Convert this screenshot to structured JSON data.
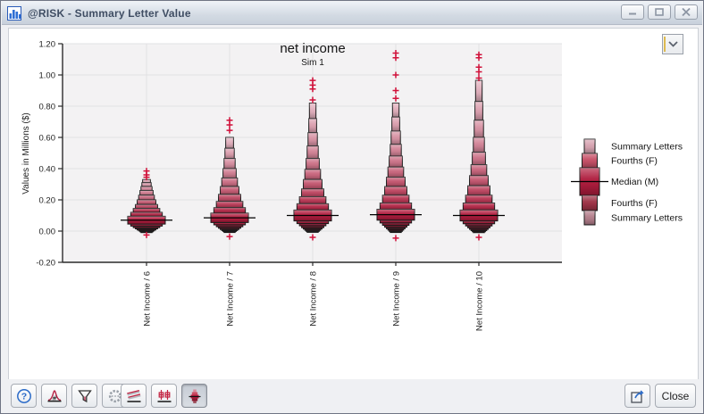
{
  "window": {
    "title": "@RISK - Summary Letter Value",
    "controls": [
      {
        "id": "minimize"
      },
      {
        "id": "maximize"
      },
      {
        "id": "close"
      }
    ]
  },
  "toolbar": {
    "buttons": [
      {
        "id": "help",
        "icon": "help-icon",
        "active": false
      },
      {
        "id": "graph-options",
        "icon": "bell-curve-icon",
        "active": false
      },
      {
        "id": "filter",
        "icon": "funnel-icon",
        "active": false
      },
      {
        "id": "settings",
        "icon": "gear-icon",
        "active": false
      },
      {
        "id": "summary-trend",
        "icon": "trend-bands-icon",
        "active": false
      },
      {
        "id": "summary-box-plot",
        "icon": "box-plot-icon",
        "active": false
      },
      {
        "id": "summary-letter-value",
        "icon": "letter-value-icon",
        "active": true
      }
    ],
    "close_label": "Close"
  },
  "chart_data": {
    "type": "letter_value_plot",
    "title": "net income",
    "subtitle": "Sim 1",
    "ylabel": "Values in Millions ($)",
    "ylim": [
      -0.2,
      1.2
    ],
    "ytick_step": 0.2,
    "grid": true,
    "legend_position": "right",
    "legend": [
      "Summary Letters",
      "Fourths (F)",
      "Median (M)",
      "Fourths (F)",
      "Summary Letters"
    ],
    "colors": {
      "median_box": "#b01d3e",
      "upper_light": "#e1b0bd",
      "lower_dark": "#2a0d14",
      "outlier": "#d01039",
      "outline": "#1c1c1c",
      "legend_boxes": [
        "#d7a4b1",
        "#c75168",
        "#b01d3e",
        "#9e3347",
        "#b5808d"
      ]
    },
    "categories": [
      "Net Income / 6",
      "Net Income / 7",
      "Net Income / 8",
      "Net Income / 9",
      "Net Income / 10"
    ],
    "series": [
      {
        "name": "Net Income / 6",
        "median": 0.07,
        "upper_letter_values": [
          0.095,
          0.12,
          0.145,
          0.17,
          0.2,
          0.23,
          0.26,
          0.285,
          0.31,
          0.33
        ],
        "lower_letter_values": [
          0.045,
          0.032,
          0.022,
          0.014,
          0.007,
          0.001,
          -0.004,
          -0.009
        ],
        "upper_outliers": [
          0.345,
          0.36,
          0.385
        ],
        "lower_outliers": [
          -0.025
        ]
      },
      {
        "name": "Net Income / 7",
        "median": 0.085,
        "upper_letter_values": [
          0.115,
          0.15,
          0.19,
          0.235,
          0.285,
          0.34,
          0.4,
          0.465,
          0.53,
          0.6
        ],
        "lower_letter_values": [
          0.055,
          0.04,
          0.028,
          0.018,
          0.01,
          0.003,
          -0.003,
          -0.009
        ],
        "upper_outliers": [
          0.645,
          0.68,
          0.71
        ],
        "lower_outliers": [
          -0.035
        ]
      },
      {
        "name": "Net Income / 8",
        "median": 0.1,
        "upper_letter_values": [
          0.135,
          0.175,
          0.22,
          0.27,
          0.33,
          0.395,
          0.465,
          0.545,
          0.63,
          0.72,
          0.82
        ],
        "lower_letter_values": [
          0.065,
          0.048,
          0.034,
          0.022,
          0.013,
          0.005,
          -0.002,
          -0.008
        ],
        "upper_outliers": [
          0.84,
          0.91,
          0.935,
          0.965
        ],
        "lower_outliers": [
          -0.04
        ]
      },
      {
        "name": "Net Income / 9",
        "median": 0.105,
        "upper_letter_values": [
          0.14,
          0.18,
          0.23,
          0.285,
          0.345,
          0.41,
          0.48,
          0.555,
          0.64,
          0.73,
          0.82
        ],
        "lower_letter_values": [
          0.07,
          0.052,
          0.037,
          0.025,
          0.015,
          0.006,
          -0.002,
          -0.009
        ],
        "upper_outliers": [
          0.85,
          0.9,
          1.0,
          1.11,
          1.14
        ],
        "lower_outliers": [
          -0.045
        ]
      },
      {
        "name": "Net Income / 10",
        "median": 0.1,
        "upper_letter_values": [
          0.135,
          0.18,
          0.23,
          0.29,
          0.355,
          0.425,
          0.505,
          0.6,
          0.71,
          0.83,
          0.965
        ],
        "lower_letter_values": [
          0.065,
          0.047,
          0.033,
          0.021,
          0.011,
          0.003,
          -0.004,
          -0.01
        ],
        "upper_outliers": [
          0.98,
          1.02,
          1.05,
          1.11,
          1.13
        ],
        "lower_outliers": [
          -0.04
        ]
      }
    ]
  }
}
